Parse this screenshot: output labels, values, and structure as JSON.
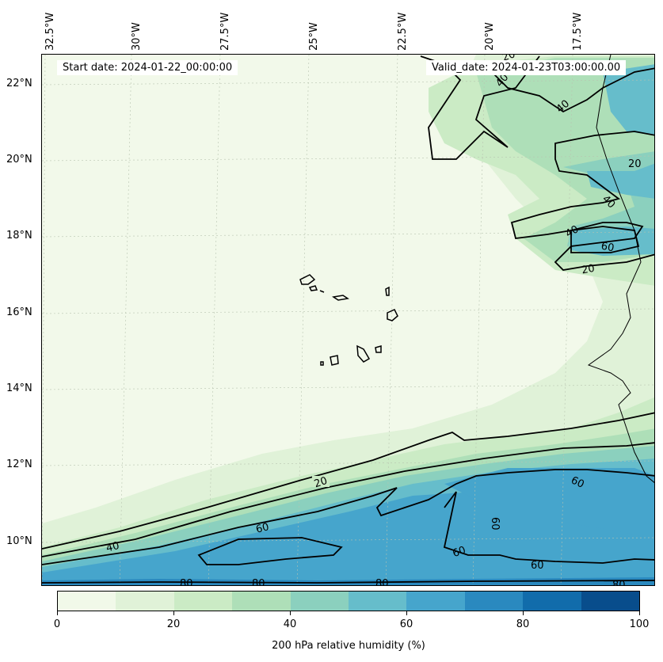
{
  "header": {
    "start_date": "Start date: 2024-01-22_00:00:00",
    "valid_date": "Valid_date: 2024-01-23T03:00:00.00"
  },
  "axes": {
    "longitude_labels": [
      "32.5°W",
      "30°W",
      "27.5°W",
      "25°W",
      "22.5°W",
      "20°W",
      "17.5°W"
    ],
    "latitude_labels": [
      "22°N",
      "20°N",
      "18°N",
      "16°N",
      "14°N",
      "12°N",
      "10°N"
    ],
    "gridlines": true
  },
  "contours": {
    "levels": [
      20,
      40,
      60,
      80
    ],
    "labels_shown": [
      "20",
      "20",
      "20",
      "20",
      "40",
      "40",
      "40",
      "40",
      "40",
      "60",
      "60",
      "60",
      "60",
      "60",
      "60",
      "80",
      "80",
      "80",
      "80"
    ]
  },
  "colorbar": {
    "title": "200 hPa relative humidity (%)",
    "tick_labels": [
      "0",
      "20",
      "40",
      "60",
      "80",
      "100"
    ],
    "colors": [
      "#f1f9e9",
      "#e0f2d8",
      "#cbebc5",
      "#aedfb8",
      "#8bd0be",
      "#66bdcb",
      "#46a5cc",
      "#2a89bf",
      "#116cab",
      "#084d8c"
    ]
  },
  "fill_colors": {
    "ocean_background": "#f2f9ea",
    "level_10_20": "#e0f2d8",
    "level_20_30": "#cbebc5",
    "level_30_40": "#aedfb8",
    "level_40_50": "#8bd0be",
    "level_50_60": "#66bdcb",
    "level_60_70": "#46a5cc",
    "level_70_80": "#2a89bf",
    "level_80_90": "#116cab",
    "level_90_100": "#084d8c"
  }
}
